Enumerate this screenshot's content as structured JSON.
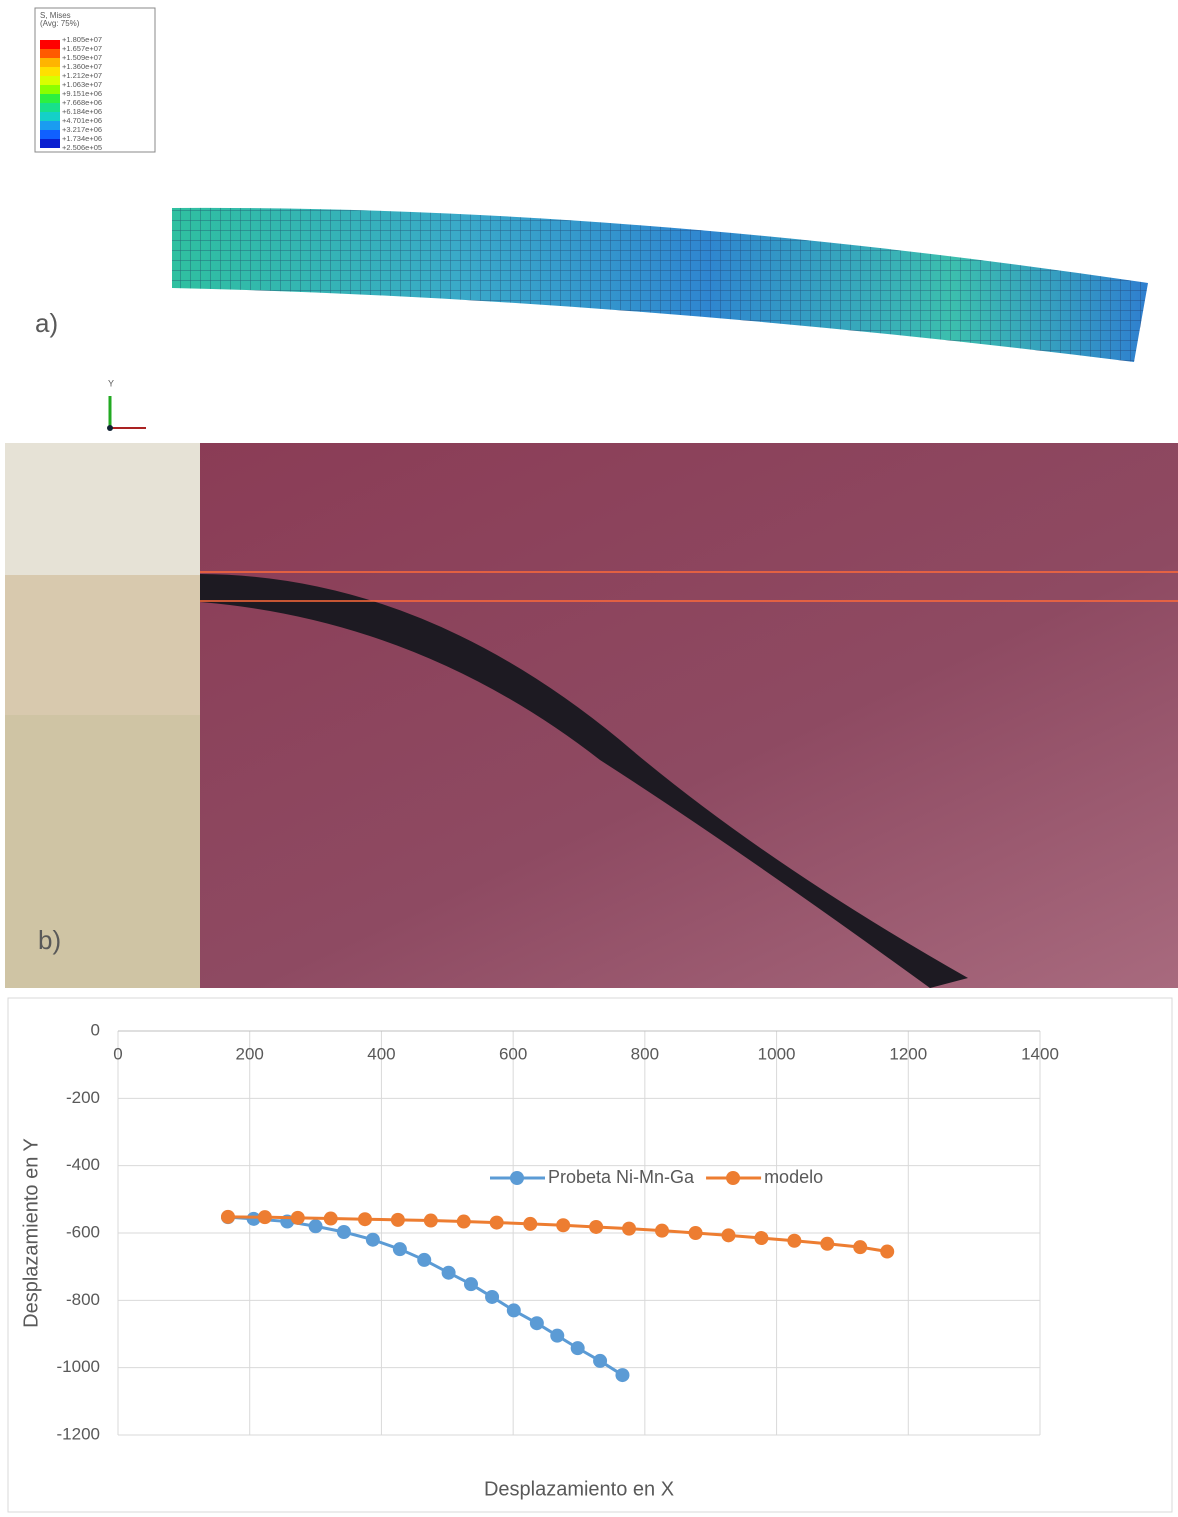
{
  "panel_a": {
    "legend_title": "S, Mises",
    "legend_subtitle": "(Avg: 75%)",
    "legend_values": [
      "+1.805e+07",
      "+1.657e+07",
      "+1.509e+07",
      "+1.360e+07",
      "+1.212e+07",
      "+1.063e+07",
      "+9.151e+06",
      "+7.668e+06",
      "+6.184e+06",
      "+4.701e+06",
      "+3.217e+06",
      "+1.734e+06",
      "+2.506e+05"
    ],
    "axis_label": "Y",
    "label": "a)"
  },
  "panel_b": {
    "label": "b)"
  },
  "chart_data": {
    "type": "line",
    "x_label": "Desplazamiento en X",
    "y_label": "Desplazamiento en Y",
    "xlim": [
      0,
      1400
    ],
    "xticks": [
      0,
      200,
      400,
      600,
      800,
      1000,
      1200,
      1400
    ],
    "ylim": [
      -1200,
      0
    ],
    "yticks": [
      0,
      -200,
      -400,
      -600,
      -800,
      -1000,
      -1200
    ],
    "grid": true,
    "series": [
      {
        "name": "Probeta Ni-Mn-Ga",
        "color": "#5b9bd5",
        "x": [
          167,
          206,
          257,
          300,
          343,
          387,
          428,
          465,
          502,
          536,
          568,
          601,
          636,
          667,
          698,
          732,
          766
        ],
        "values": [
          -553,
          -558,
          -566,
          -580,
          -597,
          -620,
          -648,
          -680,
          -718,
          -752,
          -790,
          -830,
          -868,
          -905,
          -942,
          -980,
          -1022
        ]
      },
      {
        "name": "modelo",
        "color": "#ed7d31",
        "x": [
          167,
          223,
          273,
          323,
          375,
          425,
          475,
          525,
          575,
          626,
          676,
          726,
          776,
          826,
          877,
          927,
          977,
          1027,
          1077,
          1127,
          1168
        ],
        "values": [
          -552,
          -553,
          -555,
          -557,
          -559,
          -561,
          -563,
          -566,
          -569,
          -573,
          -577,
          -582,
          -587,
          -593,
          -600,
          -607,
          -615,
          -623,
          -632,
          -642,
          -655
        ]
      }
    ]
  }
}
